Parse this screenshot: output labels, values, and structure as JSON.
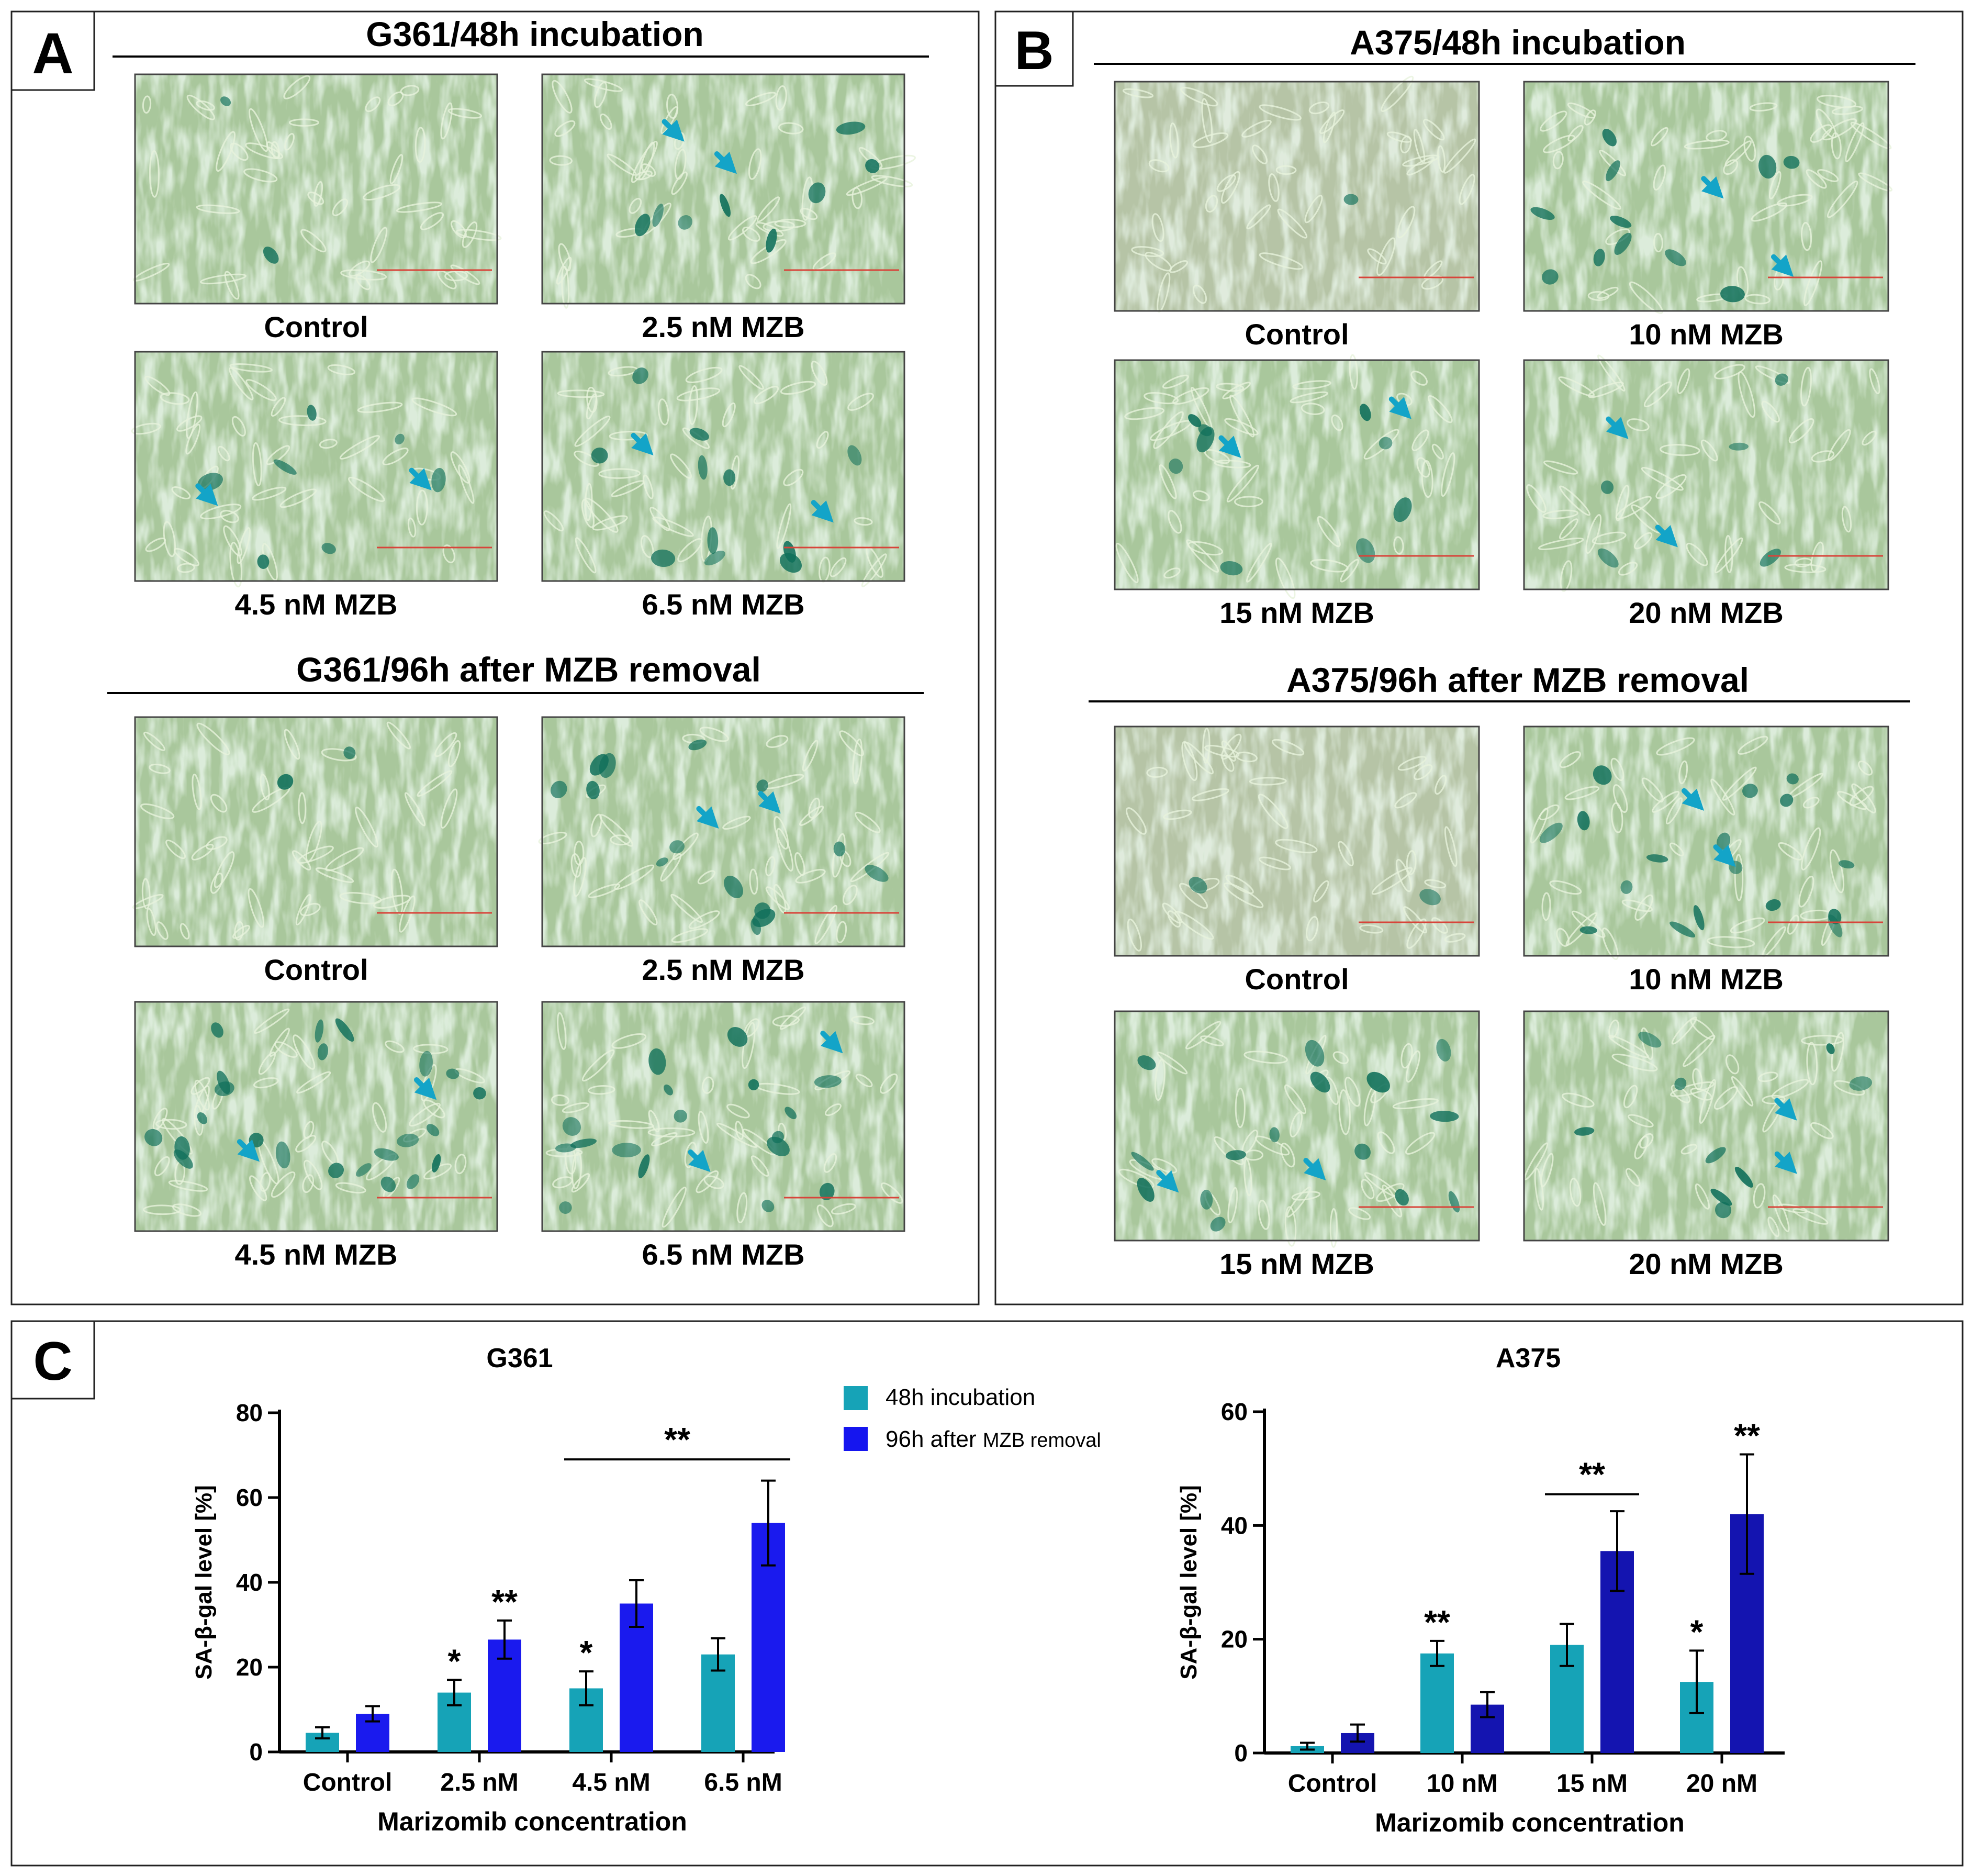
{
  "panels": {
    "A": {
      "letter": "A",
      "sections": [
        {
          "title": "G361/48h incubation",
          "images": [
            {
              "label": "Control",
              "stain": 0.05
            },
            {
              "label": "2.5 nM MZB",
              "stain": 0.25
            },
            {
              "label": "4.5 nM MZB",
              "stain": 0.22
            },
            {
              "label": "6.5 nM MZB",
              "stain": 0.35
            }
          ]
        },
        {
          "title": "G361/96h after MZB removal",
          "images": [
            {
              "label": "Control",
              "stain": 0.05
            },
            {
              "label": "2.5 nM MZB",
              "stain": 0.45
            },
            {
              "label": "4.5 nM MZB",
              "stain": 0.75
            },
            {
              "label": "6.5 nM MZB",
              "stain": 0.55
            }
          ]
        }
      ]
    },
    "B": {
      "letter": "B",
      "sections": [
        {
          "title": "A375/48h incubation",
          "images": [
            {
              "label": "Control",
              "stain": 0.02
            },
            {
              "label": "10 nM MZB",
              "stain": 0.35
            },
            {
              "label": "15 nM MZB",
              "stain": 0.3
            },
            {
              "label": "20 nM MZB",
              "stain": 0.15
            }
          ]
        },
        {
          "title": "A375/96h after MZB removal",
          "images": [
            {
              "label": "Control",
              "stain": 0.05
            },
            {
              "label": "10 nM MZB",
              "stain": 0.55
            },
            {
              "label": "15 nM MZB",
              "stain": 0.5
            },
            {
              "label": "20 nM MZB",
              "stain": 0.3
            }
          ]
        }
      ]
    },
    "C": {
      "letter": "C"
    }
  },
  "legend": {
    "items": [
      {
        "label": "48h incubation",
        "color": "#16a3b7"
      },
      {
        "label_main": "96h after ",
        "label_small": "MZB removal",
        "color": "#1515ef"
      }
    ]
  },
  "chart_data": [
    {
      "type": "bar",
      "title": "G361",
      "xlabel": "Marizomib concentration",
      "ylabel": "SA-β-gal level [%]",
      "ylim": [
        0,
        80
      ],
      "yticks": [
        0,
        20,
        40,
        60,
        80
      ],
      "categories": [
        "Control",
        "2.5 nM",
        "4.5 nM",
        "6.5 nM"
      ],
      "series": [
        {
          "name": "48h incubation",
          "color": "#16a3b7",
          "values": [
            4.5,
            14,
            15,
            23
          ],
          "errors": [
            1.3,
            3,
            4,
            3.8
          ],
          "annotations": [
            "",
            "*",
            "*",
            ""
          ]
        },
        {
          "name": "96h after MZB removal",
          "color": "#1a1aee",
          "values": [
            9,
            26.5,
            35,
            54
          ],
          "errors": [
            1.8,
            4.5,
            5.5,
            10
          ],
          "annotations": [
            "",
            "**",
            "",
            ""
          ]
        }
      ],
      "brackets": [
        {
          "from": 2,
          "to": 3,
          "y": 69,
          "label": "**"
        }
      ]
    },
    {
      "type": "bar",
      "title": "A375",
      "xlabel": "Marizomib concentration",
      "ylabel": "SA-β-gal level [%]",
      "ylim": [
        0,
        60
      ],
      "yticks": [
        0,
        20,
        40,
        60
      ],
      "categories": [
        "Control",
        "10 nM",
        "15 nM",
        "20 nM"
      ],
      "series": [
        {
          "name": "48h incubation",
          "color": "#16a3b7",
          "values": [
            1.2,
            17.5,
            19,
            12.5
          ],
          "errors": [
            0.6,
            2.2,
            3.7,
            5.5
          ],
          "annotations": [
            "",
            "**",
            "",
            "*"
          ]
        },
        {
          "name": "96h after MZB removal",
          "color": "#1414b0",
          "values": [
            3.5,
            8.5,
            35.5,
            42
          ],
          "errors": [
            1.5,
            2.2,
            7,
            10.5
          ],
          "annotations": [
            "",
            "",
            "",
            "**"
          ]
        }
      ],
      "brackets": [
        {
          "from": 2,
          "to": 2,
          "y": 45.5,
          "label": "**"
        }
      ]
    }
  ]
}
